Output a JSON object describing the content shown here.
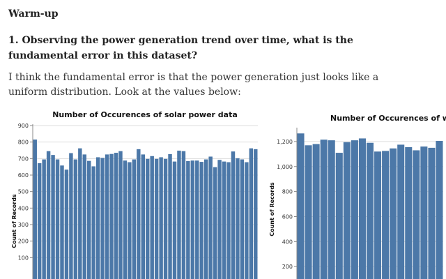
{
  "page": {
    "heading": "Warm-up",
    "question": "1. Observing the power generation trend over time, what is the fundamental error in this dataset?",
    "paragraph": "I think the fundamental error is that the power generation just looks like a uniform distribution. Look at the values below:"
  },
  "colors": {
    "bar": "#4c78a8",
    "grid": "#dddddd",
    "axis": "#888888"
  },
  "chart_data": [
    {
      "type": "bar",
      "title": "Number of Occurences of solar power data",
      "ylabel": "Count of Records",
      "ylim": [
        0,
        900
      ],
      "yticks": [
        100,
        200,
        300,
        400,
        500,
        600,
        700,
        800,
        900
      ],
      "ytick_labels": [
        "100",
        "200",
        "300",
        "400",
        "500",
        "600",
        "700",
        "800",
        "900"
      ],
      "values": [
        815,
        672,
        695,
        745,
        722,
        695,
        658,
        633,
        733,
        695,
        762,
        725,
        686,
        653,
        708,
        704,
        725,
        728,
        735,
        745,
        688,
        678,
        695,
        757,
        725,
        698,
        715,
        698,
        708,
        698,
        727,
        682,
        748,
        745,
        685,
        688,
        688,
        680,
        695,
        712,
        648,
        692,
        682,
        678,
        743,
        702,
        695,
        678,
        762,
        757
      ]
    },
    {
      "type": "bar",
      "title": "Number of Occurences of win",
      "ylabel": "Count of Records",
      "ylim": [
        0,
        1300
      ],
      "yticks": [
        200,
        400,
        600,
        800,
        1000,
        1200
      ],
      "ytick_labels": [
        "200",
        "400",
        "600",
        "800",
        "1,000",
        "1,200"
      ],
      "values": [
        1265,
        1170,
        1180,
        1215,
        1210,
        1110,
        1195,
        1210,
        1225,
        1190,
        1120,
        1125,
        1145,
        1175,
        1155,
        1130,
        1160,
        1150,
        1205
      ]
    }
  ]
}
